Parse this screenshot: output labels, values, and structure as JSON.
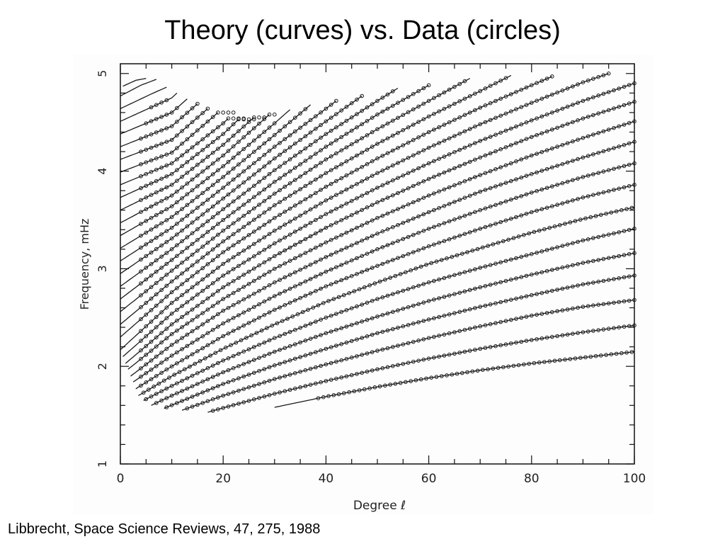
{
  "slide": {
    "title": "Theory (curves) vs. Data (circles)",
    "caption": "Libbrecht, Space Science Reviews, 47, 275, 1988"
  },
  "chart_data": {
    "type": "scatter",
    "title": "",
    "xlabel": "Degree ℓ",
    "ylabel": "Frequency, mHz",
    "xlim": [
      0,
      100
    ],
    "ylim": [
      1,
      5.1
    ],
    "xticks": [
      0,
      20,
      40,
      60,
      80,
      100
    ],
    "yticks": [
      1,
      2,
      3,
      4,
      5
    ],
    "grid": false,
    "legend": "none",
    "theory_curves": [
      {
        "name": "",
        "x": [
          30.0,
          40,
          50,
          60,
          70,
          80,
          90,
          100
        ],
        "y": [
          1.58,
          1.69,
          1.79,
          1.88,
          1.96,
          2.03,
          2.09,
          2.15
        ]
      },
      {
        "name": "",
        "x": [
          17.0,
          30,
          40,
          50,
          60,
          70,
          80,
          90,
          100
        ],
        "y": [
          1.53,
          1.72,
          1.85,
          1.97,
          2.08,
          2.18,
          2.27,
          2.35,
          2.42
        ]
      },
      {
        "name": "",
        "x": [
          12.0,
          20,
          30,
          40,
          50,
          60,
          70,
          80,
          90,
          100
        ],
        "y": [
          1.55,
          1.7,
          1.87,
          2.02,
          2.16,
          2.29,
          2.41,
          2.52,
          2.61,
          2.68
        ]
      },
      {
        "name": "",
        "x": [
          8.5,
          20,
          30,
          40,
          50,
          60,
          70,
          80,
          90,
          100
        ],
        "y": [
          1.57,
          1.82,
          2.01,
          2.18,
          2.34,
          2.48,
          2.61,
          2.73,
          2.84,
          2.93
        ]
      },
      {
        "name": "",
        "x": [
          6.0,
          10,
          20,
          30,
          40,
          50,
          60,
          70,
          80,
          90,
          100
        ],
        "y": [
          1.6,
          1.7,
          1.94,
          2.15,
          2.34,
          2.51,
          2.67,
          2.81,
          2.94,
          3.06,
          3.16
        ]
      },
      {
        "name": "",
        "x": [
          4.5,
          10,
          20,
          30,
          40,
          50,
          60,
          70,
          80,
          90,
          100
        ],
        "y": [
          1.65,
          1.8,
          2.06,
          2.29,
          2.5,
          2.69,
          2.86,
          3.01,
          3.15,
          3.29,
          3.41
        ]
      },
      {
        "name": "",
        "x": [
          3.5,
          10,
          20,
          30,
          40,
          50,
          60,
          70,
          80,
          90,
          100
        ],
        "y": [
          1.7,
          1.9,
          2.18,
          2.43,
          2.66,
          2.86,
          3.05,
          3.21,
          3.37,
          3.51,
          3.63
        ]
      },
      {
        "name": "",
        "x": [
          3.0,
          10,
          20,
          30,
          40,
          50,
          60,
          70,
          80,
          90,
          100
        ],
        "y": [
          1.77,
          2.0,
          2.31,
          2.58,
          2.82,
          3.03,
          3.23,
          3.41,
          3.58,
          3.73,
          3.86
        ]
      },
      {
        "name": "",
        "x": [
          2.5,
          10,
          20,
          30,
          40,
          50,
          60,
          70,
          80,
          90,
          100
        ],
        "y": [
          1.84,
          2.11,
          2.44,
          2.72,
          2.97,
          3.2,
          3.41,
          3.6,
          3.78,
          3.94,
          4.08
        ]
      },
      {
        "name": "",
        "x": [
          2.0,
          10,
          20,
          30,
          40,
          50,
          60,
          70,
          80,
          90,
          100
        ],
        "y": [
          1.9,
          2.22,
          2.57,
          2.86,
          3.12,
          3.36,
          3.58,
          3.79,
          3.97,
          4.14,
          4.3
        ]
      },
      {
        "name": "",
        "x": [
          1.5,
          10,
          20,
          30,
          40,
          50,
          60,
          70,
          80,
          90,
          100
        ],
        "y": [
          1.97,
          2.33,
          2.69,
          3.0,
          3.27,
          3.52,
          3.75,
          3.96,
          4.16,
          4.34,
          4.51
        ]
      },
      {
        "name": "",
        "x": [
          1.0,
          10,
          20,
          30,
          40,
          50,
          60,
          70,
          80,
          90,
          100
        ],
        "y": [
          2.03,
          2.43,
          2.81,
          3.13,
          3.42,
          3.68,
          3.92,
          4.14,
          4.35,
          4.54,
          4.71
        ]
      },
      {
        "name": "",
        "x": [
          0.5,
          10,
          20,
          30,
          40,
          50,
          60,
          70,
          80,
          90,
          100
        ],
        "y": [
          2.1,
          2.54,
          2.93,
          3.26,
          3.56,
          3.83,
          4.08,
          4.31,
          4.52,
          4.72,
          4.9
        ]
      },
      {
        "name": "",
        "x": [
          0.0,
          10,
          20,
          30,
          40,
          50,
          60,
          70,
          80,
          90,
          95
        ],
        "y": [
          2.17,
          2.65,
          3.05,
          3.39,
          3.7,
          3.98,
          4.24,
          4.48,
          4.7,
          4.91,
          5.0
        ]
      },
      {
        "name": "",
        "x": [
          0.0,
          10,
          20,
          30,
          40,
          50,
          60,
          70,
          80,
          84
        ],
        "y": [
          2.3,
          2.76,
          3.17,
          3.52,
          3.84,
          4.13,
          4.4,
          4.65,
          4.88,
          4.97
        ]
      },
      {
        "name": "",
        "x": [
          0.0,
          10,
          20,
          30,
          40,
          50,
          60,
          70,
          76
        ],
        "y": [
          2.43,
          2.87,
          3.28,
          3.65,
          3.98,
          4.28,
          4.56,
          4.82,
          4.98
        ]
      },
      {
        "name": "",
        "x": [
          0.0,
          10,
          20,
          30,
          40,
          50,
          60,
          68
        ],
        "y": [
          2.56,
          2.98,
          3.39,
          3.77,
          4.12,
          4.43,
          4.72,
          4.95
        ]
      },
      {
        "name": "",
        "x": [
          0.0,
          10,
          20,
          30,
          40,
          50,
          60
        ],
        "y": [
          2.69,
          3.09,
          3.5,
          3.89,
          4.25,
          4.58,
          4.88
        ]
      },
      {
        "name": "",
        "x": [
          0.0,
          10,
          20,
          30,
          40,
          50,
          54
        ],
        "y": [
          2.82,
          3.2,
          3.61,
          4.01,
          4.38,
          4.72,
          4.85
        ]
      },
      {
        "name": "",
        "x": [
          0.0,
          10,
          20,
          30,
          40,
          47
        ],
        "y": [
          2.95,
          3.31,
          3.72,
          4.13,
          4.51,
          4.77
        ]
      },
      {
        "name": "",
        "x": [
          0.0,
          10,
          20,
          30,
          40,
          42
        ],
        "y": [
          3.08,
          3.42,
          3.83,
          4.25,
          4.64,
          4.72
        ]
      },
      {
        "name": "",
        "x": [
          0.0,
          10,
          20,
          30,
          37
        ],
        "y": [
          3.21,
          3.53,
          3.94,
          4.37,
          4.68
        ]
      },
      {
        "name": "",
        "x": [
          0.0,
          10,
          20,
          30,
          33
        ],
        "y": [
          3.34,
          3.64,
          4.05,
          4.49,
          4.63
        ]
      },
      {
        "name": "",
        "x": [
          0.0,
          10,
          20,
          29
        ],
        "y": [
          3.47,
          3.75,
          4.16,
          4.58
        ]
      },
      {
        "name": "",
        "x": [
          0.0,
          10,
          20,
          26
        ],
        "y": [
          3.6,
          3.86,
          4.27,
          4.55
        ]
      },
      {
        "name": "",
        "x": [
          0.0,
          10,
          20,
          23
        ],
        "y": [
          3.73,
          3.97,
          4.38,
          4.53
        ]
      },
      {
        "name": "",
        "x": [
          0.0,
          10,
          20,
          21
        ],
        "y": [
          3.86,
          4.08,
          4.49,
          4.54
        ]
      },
      {
        "name": "",
        "x": [
          0.0,
          10,
          19
        ],
        "y": [
          3.99,
          4.19,
          4.6
        ]
      },
      {
        "name": "",
        "x": [
          0.0,
          10,
          17
        ],
        "y": [
          4.12,
          4.32,
          4.64
        ]
      },
      {
        "name": "",
        "x": [
          0.0,
          10,
          15
        ],
        "y": [
          4.25,
          4.46,
          4.69
        ]
      },
      {
        "name": "",
        "x": [
          0.0,
          10,
          13
        ],
        "y": [
          4.38,
          4.6,
          4.74
        ]
      },
      {
        "name": "",
        "x": [
          0.0,
          10,
          11
        ],
        "y": [
          4.51,
          4.75,
          4.8
        ]
      },
      {
        "name": "",
        "x": [
          0.0,
          6,
          9
        ],
        "y": [
          4.64,
          4.79,
          4.86
        ]
      },
      {
        "name": "",
        "x": [
          0.0,
          4,
          7
        ],
        "y": [
          4.77,
          4.88,
          4.94
        ]
      },
      {
        "name": "",
        "x": [
          0.5,
          3,
          5
        ],
        "y": [
          4.87,
          4.93,
          4.95
        ]
      }
    ],
    "data_ranges": [
      {
        "curve": 0,
        "x_start": 38.5,
        "x_end": 100
      },
      {
        "curve": 1,
        "x_start": 18,
        "x_end": 100
      },
      {
        "curve": 2,
        "x_start": 13,
        "x_end": 100
      },
      {
        "curve": 3,
        "x_start": 9,
        "x_end": 100
      },
      {
        "curve": 4,
        "x_start": 7,
        "x_end": 100
      },
      {
        "curve": 5,
        "x_start": 5,
        "x_end": 100
      },
      {
        "curve": 6,
        "x_start": 4.5,
        "x_end": 100
      },
      {
        "curve": 7,
        "x_start": 4,
        "x_end": 100
      },
      {
        "curve": 8,
        "x_start": 4,
        "x_end": 100
      },
      {
        "curve": 9,
        "x_start": 4,
        "x_end": 100
      },
      {
        "curve": 10,
        "x_start": 4,
        "x_end": 100
      },
      {
        "curve": 11,
        "x_start": 4,
        "x_end": 100
      },
      {
        "curve": 12,
        "x_start": 4,
        "x_end": 100
      },
      {
        "curve": 13,
        "x_start": 4,
        "x_end": 95
      },
      {
        "curve": 14,
        "x_start": 4,
        "x_end": 84
      },
      {
        "curve": 15,
        "x_start": 4,
        "x_end": 75
      },
      {
        "curve": 16,
        "x_start": 4,
        "x_end": 67
      },
      {
        "curve": 17,
        "x_start": 4,
        "x_end": 60
      },
      {
        "curve": 18,
        "x_start": 4,
        "x_end": 53
      },
      {
        "curve": 19,
        "x_start": 4,
        "x_end": 47
      },
      {
        "curve": 20,
        "x_start": 4,
        "x_end": 42
      },
      {
        "curve": 21,
        "x_start": 4,
        "x_end": 36
      },
      {
        "curve": 22,
        "x_start": 4,
        "x_end": 30
      },
      {
        "curve": 23,
        "x_start": 4,
        "x_end": 30
      },
      {
        "curve": 24,
        "x_start": 4,
        "x_end": 28
      },
      {
        "curve": 25,
        "x_start": 4,
        "x_end": 26
      },
      {
        "curve": 26,
        "x_start": 4,
        "x_end": 24
      },
      {
        "curve": 27,
        "x_start": 4,
        "x_end": 22
      },
      {
        "curve": 28,
        "x_start": 4,
        "x_end": 17
      },
      {
        "curve": 29,
        "x_start": 4,
        "x_end": 15
      },
      {
        "curve": 30,
        "x_start": 5,
        "x_end": 11
      },
      {
        "curve": 31,
        "x_start": 6,
        "x_end": 9
      }
    ],
    "data_step": 1,
    "colors": {
      "curve": "#1a1a1a",
      "circle": "#1a1a1a",
      "frame": "#111111"
    }
  }
}
